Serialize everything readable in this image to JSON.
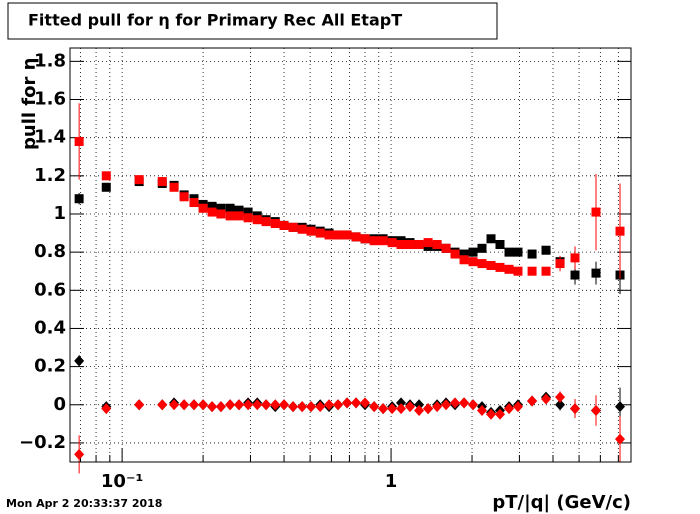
{
  "chart_data": {
    "type": "scatter",
    "title": "Fitted pull for  η for Primary Rec All EtapT",
    "y_label": "pull for  η",
    "x_label": "pT/|q| (GeV/c)",
    "timestamp": "Mon Apr  2 20:33:37 2018",
    "log_x": true,
    "grid": true,
    "xlim": [
      0.064,
      7.8
    ],
    "xticks": [
      {
        "value": 0.1,
        "label": "10⁻¹"
      },
      1
    ],
    "xminorticks": [
      0.07,
      0.08,
      0.09,
      0.2,
      0.3,
      0.4,
      0.5,
      0.6,
      0.7,
      0.8,
      0.9,
      2,
      3,
      4,
      5,
      6,
      7
    ],
    "ylim": [
      -0.3,
      1.87
    ],
    "yticks": [
      {
        "value": -0.2,
        "label": "−0.2"
      },
      0,
      0.2,
      0.4,
      0.6,
      0.8,
      1,
      1.2,
      1.4,
      1.6,
      1.8
    ],
    "x": [
      0.0692,
      0.0873,
      0.1157,
      0.141,
      0.156,
      0.17,
      0.185,
      0.2,
      0.216,
      0.233,
      0.252,
      0.272,
      0.294,
      0.318,
      0.343,
      0.371,
      0.4,
      0.432,
      0.467,
      0.504,
      0.545,
      0.588,
      0.635,
      0.686,
      0.741,
      0.8,
      0.865,
      0.934,
      1.009,
      1.089,
      1.176,
      1.271,
      1.373,
      1.483,
      1.601,
      1.729,
      1.868,
      2.017,
      2.178,
      2.353,
      2.541,
      2.745,
      2.964,
      3.344,
      3.768,
      4.249,
      4.83,
      5.78,
      7.1
    ],
    "series": [
      {
        "color": "#000000",
        "marker": "square",
        "values": [
          1.08,
          1.14,
          1.17,
          1.16,
          1.15,
          1.1,
          1.08,
          1.05,
          1.04,
          1.03,
          1.03,
          1.02,
          1.01,
          0.99,
          0.97,
          0.96,
          0.94,
          0.93,
          0.93,
          0.92,
          0.91,
          0.9,
          0.89,
          0.89,
          0.88,
          0.87,
          0.87,
          0.87,
          0.86,
          0.86,
          0.85,
          0.84,
          0.83,
          0.83,
          0.82,
          0.8,
          0.79,
          0.8,
          0.82,
          0.87,
          0.84,
          0.8,
          0.8,
          0.79,
          0.81,
          0.75,
          0.68,
          0.69,
          0.68
        ],
        "errors": [
          0.03,
          0.01,
          0.01,
          0.01,
          0.01,
          0.01,
          0.01,
          0.01,
          0.01,
          0.01,
          0.01,
          0.01,
          0.01,
          0.01,
          0.01,
          0.01,
          0.01,
          0.01,
          0.01,
          0.01,
          0.01,
          0.01,
          0.01,
          0.01,
          0.01,
          0.01,
          0.01,
          0.01,
          0.01,
          0.01,
          0.01,
          0.01,
          0.01,
          0.01,
          0.01,
          0.01,
          0.01,
          0.01,
          0.01,
          0.01,
          0.01,
          0.01,
          0.01,
          0.02,
          0.02,
          0.03,
          0.05,
          0.06,
          0.1
        ]
      },
      {
        "color": "#ff0000",
        "marker": "square",
        "values": [
          1.38,
          1.2,
          1.18,
          1.17,
          1.14,
          1.09,
          1.06,
          1.03,
          1.01,
          1.0,
          0.99,
          0.99,
          0.98,
          0.97,
          0.96,
          0.95,
          0.94,
          0.93,
          0.92,
          0.91,
          0.9,
          0.89,
          0.89,
          0.89,
          0.88,
          0.87,
          0.86,
          0.86,
          0.85,
          0.84,
          0.84,
          0.84,
          0.85,
          0.84,
          0.82,
          0.79,
          0.76,
          0.75,
          0.74,
          0.73,
          0.72,
          0.71,
          0.7,
          0.7,
          0.7,
          0.74,
          0.77,
          1.01,
          0.91
        ],
        "errors": [
          0.2,
          0.01,
          0.01,
          0.01,
          0.01,
          0.01,
          0.01,
          0.01,
          0.01,
          0.01,
          0.01,
          0.01,
          0.01,
          0.01,
          0.01,
          0.01,
          0.01,
          0.01,
          0.01,
          0.01,
          0.01,
          0.01,
          0.01,
          0.01,
          0.01,
          0.01,
          0.01,
          0.01,
          0.01,
          0.01,
          0.01,
          0.01,
          0.01,
          0.01,
          0.01,
          0.01,
          0.01,
          0.01,
          0.01,
          0.01,
          0.01,
          0.01,
          0.01,
          0.02,
          0.02,
          0.04,
          0.06,
          0.2,
          0.25
        ]
      },
      {
        "color": "#000000",
        "marker": "diamond",
        "values": [
          0.23,
          -0.01,
          0.0,
          0.0,
          0.01,
          0.0,
          0.0,
          0.0,
          -0.01,
          -0.01,
          0.0,
          0.0,
          0.01,
          0.01,
          0.0,
          -0.01,
          0.0,
          -0.01,
          -0.01,
          -0.01,
          0.0,
          -0.01,
          0.0,
          0.01,
          0.01,
          0.0,
          -0.01,
          -0.02,
          -0.01,
          0.01,
          0.0,
          0.0,
          -0.02,
          0.0,
          0.01,
          0.0,
          0.01,
          0.0,
          -0.01,
          -0.04,
          -0.03,
          -0.01,
          0.0,
          0.02,
          0.04,
          0.0,
          -0.02,
          -0.03,
          -0.01
        ],
        "errors": [
          0.03,
          0.01,
          0.01,
          0.01,
          0.01,
          0.01,
          0.01,
          0.01,
          0.01,
          0.01,
          0.01,
          0.01,
          0.01,
          0.01,
          0.01,
          0.01,
          0.01,
          0.01,
          0.01,
          0.01,
          0.01,
          0.01,
          0.01,
          0.01,
          0.01,
          0.01,
          0.01,
          0.01,
          0.01,
          0.01,
          0.01,
          0.01,
          0.01,
          0.01,
          0.01,
          0.01,
          0.01,
          0.01,
          0.01,
          0.01,
          0.01,
          0.01,
          0.01,
          0.02,
          0.02,
          0.03,
          0.04,
          0.06,
          0.1
        ]
      },
      {
        "color": "#ff0000",
        "marker": "diamond",
        "values": [
          -0.26,
          -0.02,
          0.0,
          0.0,
          0.0,
          0.0,
          0.0,
          0.0,
          -0.01,
          -0.01,
          0.0,
          0.0,
          0.0,
          0.0,
          0.0,
          0.0,
          0.0,
          -0.01,
          -0.01,
          -0.01,
          -0.01,
          0.0,
          0.0,
          0.01,
          0.01,
          0.01,
          -0.01,
          -0.02,
          -0.02,
          -0.02,
          -0.01,
          -0.03,
          -0.02,
          -0.01,
          0.0,
          0.01,
          0.01,
          0.0,
          -0.03,
          -0.05,
          -0.05,
          -0.02,
          -0.01,
          0.02,
          0.03,
          0.04,
          -0.02,
          -0.03,
          -0.18
        ],
        "errors": [
          0.1,
          0.01,
          0.01,
          0.01,
          0.01,
          0.01,
          0.01,
          0.01,
          0.01,
          0.01,
          0.01,
          0.01,
          0.01,
          0.01,
          0.01,
          0.01,
          0.01,
          0.01,
          0.01,
          0.01,
          0.01,
          0.01,
          0.01,
          0.01,
          0.01,
          0.01,
          0.01,
          0.01,
          0.01,
          0.01,
          0.01,
          0.01,
          0.01,
          0.01,
          0.01,
          0.01,
          0.01,
          0.01,
          0.01,
          0.01,
          0.01,
          0.01,
          0.01,
          0.02,
          0.02,
          0.03,
          0.05,
          0.08,
          0.12
        ]
      }
    ]
  }
}
